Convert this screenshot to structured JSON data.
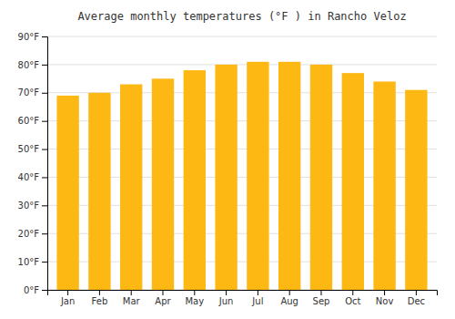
{
  "chart_data": {
    "type": "bar",
    "title": "Average monthly temperatures (°F ) in Rancho Veloz",
    "categories": [
      "Jan",
      "Feb",
      "Mar",
      "Apr",
      "May",
      "Jun",
      "Jul",
      "Aug",
      "Sep",
      "Oct",
      "Nov",
      "Dec"
    ],
    "values": [
      69,
      70,
      73,
      75,
      78,
      80,
      81,
      81,
      80,
      77,
      74,
      71
    ],
    "color": "#FDB813",
    "ylim": [
      0,
      90
    ],
    "yticks": [
      {
        "value": 0,
        "label": "0°F"
      },
      {
        "value": 10,
        "label": "10°F"
      },
      {
        "value": 20,
        "label": "20°F"
      },
      {
        "value": 30,
        "label": "30°F"
      },
      {
        "value": 40,
        "label": "40°F"
      },
      {
        "value": 50,
        "label": "50°F"
      },
      {
        "value": 60,
        "label": "60°F"
      },
      {
        "value": 70,
        "label": "70°F"
      },
      {
        "value": 80,
        "label": "80°F"
      },
      {
        "value": 90,
        "label": "90°F"
      }
    ],
    "grid": true
  }
}
